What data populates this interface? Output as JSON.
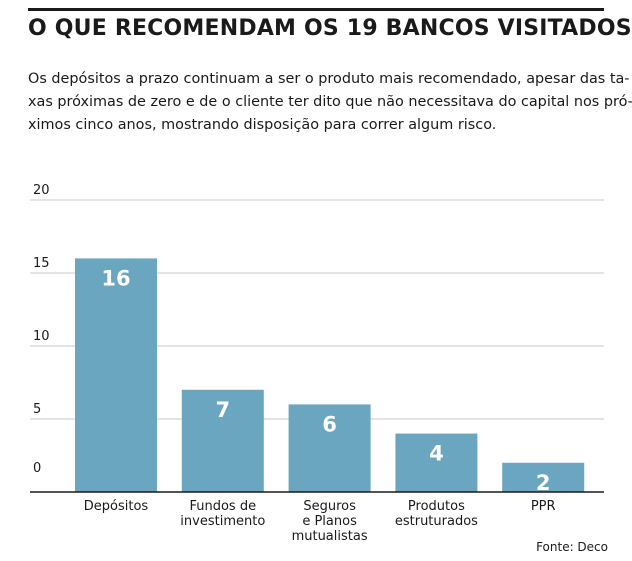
{
  "header": {
    "title": "O QUE RECOMENDAM OS 19 BANCOS VISITADOS?",
    "subtitle_lines": [
      "Os depósitos a prazo continuam a ser o produto mais recomendado, apesar das ta-",
      "xas próximas de zero e de o cliente ter dito que não necessitava do capital nos pró-",
      "ximos cinco anos, mostrando disposição para correr algum risco."
    ]
  },
  "footer": {
    "source": "Fonte: Deco"
  },
  "colors": {
    "bar": "#6aa6bf",
    "grid": "#c8c8c8",
    "axis": "#1a1a1a"
  },
  "chart_data": {
    "type": "bar",
    "categories": [
      [
        "Depósitos"
      ],
      [
        "Fundos de",
        "investimento"
      ],
      [
        "Seguros",
        "e Planos",
        "mutualistas"
      ],
      [
        "Produtos",
        "estruturados"
      ],
      [
        "PPR"
      ]
    ],
    "values": [
      16,
      7,
      6,
      4,
      2
    ],
    "data_labels": [
      "16",
      "7",
      "6",
      "4",
      "2"
    ],
    "yticks": [
      0,
      5,
      10,
      15,
      20
    ],
    "ylim": [
      0,
      20
    ],
    "grid": true,
    "xlabel": "",
    "ylabel": ""
  }
}
